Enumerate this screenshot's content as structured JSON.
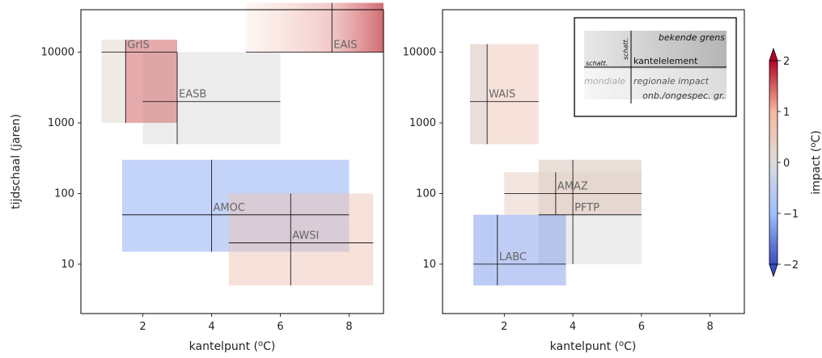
{
  "chart_data": [
    {
      "type": "range-box",
      "xlabel_main": "kantelpunt (",
      "xlabel_sup": "o",
      "xlabel_tail": "C)",
      "ylabel": "tijdschaal (jaren)",
      "xlim": [
        0.2,
        9.0
      ],
      "ylim_log": [
        2,
        40000
      ],
      "xticks": [
        2,
        4,
        6,
        8
      ],
      "yticks": [
        10,
        100,
        1000,
        10000
      ],
      "yscale": "log",
      "elements": [
        {
          "name": "GrIS",
          "x": [
            0.8,
            3.0
          ],
          "y": [
            1000,
            15000
          ],
          "x_best": 1.5,
          "y_best": 10000,
          "impact": 0.2
        },
        {
          "name": "EAIS",
          "x": [
            5.0,
            9.0
          ],
          "y": [
            10000,
            50000
          ],
          "x_best": 7.5,
          "y_best": 10000,
          "impact": 1.5
        },
        {
          "name": "EASB",
          "x": [
            2.0,
            6.0
          ],
          "y": [
            500,
            10000
          ],
          "x_best": 3.0,
          "y_best": 2000,
          "impact": null
        },
        {
          "name": "AMOC",
          "x": [
            1.4,
            8.0
          ],
          "y": [
            15,
            300
          ],
          "x_best": 4.0,
          "y_best": 50,
          "impact": -1.2
        },
        {
          "name": "AWSI",
          "x": [
            4.5,
            8.7
          ],
          "y": [
            5,
            100
          ],
          "x_best": 6.3,
          "y_best": 20,
          "impact": 0.6
        }
      ],
      "secondary_boxes": [
        {
          "name": "GrIS",
          "x": [
            1.5,
            3.0
          ],
          "y": [
            1000,
            15000
          ],
          "impact": 1.5
        }
      ]
    },
    {
      "type": "range-box",
      "xlabel_main": "kantelpunt (",
      "xlabel_sup": "o",
      "xlabel_tail": "C)",
      "xlim": [
        0.2,
        9.0
      ],
      "ylim_log": [
        2,
        40000
      ],
      "xticks": [
        2,
        4,
        6,
        8
      ],
      "yticks": [
        10,
        100,
        1000,
        10000
      ],
      "yscale": "log",
      "elements": [
        {
          "name": "WAIS",
          "x": [
            1.0,
            3.0
          ],
          "y": [
            500,
            13000
          ],
          "x_best": 1.5,
          "y_best": 2000,
          "impact": 0.6
        },
        {
          "name": "AMAZ",
          "x": [
            2.0,
            6.0
          ],
          "y": [
            50,
            200
          ],
          "x_best": 3.5,
          "y_best": 100,
          "impact": 0.4
        },
        {
          "name": "PFTP",
          "x": [
            3.0,
            6.0
          ],
          "y": [
            10,
            300
          ],
          "x_best": 4.0,
          "y_best": 50,
          "impact": null
        },
        {
          "name": "LABC",
          "x": [
            1.1,
            3.8
          ],
          "y": [
            5,
            50
          ],
          "x_best": 1.8,
          "y_best": 10,
          "impact": -1.3
        }
      ],
      "secondary_boxes": [
        {
          "name": "WAIS",
          "x": [
            1.0,
            1.5
          ],
          "y": [
            500,
            13000
          ],
          "impact": null
        },
        {
          "name": "AMAZ",
          "x": [
            3.0,
            6.0
          ],
          "y": [
            50,
            300
          ],
          "impact": 0.4
        },
        {
          "name": "LABC",
          "x": [
            1.1,
            1.8
          ],
          "y": [
            5,
            50
          ],
          "impact": -0.6
        }
      ],
      "legend": {
        "row1_right": "bekende grens",
        "vertical_label": "schatt.",
        "row2_left": "schatt.",
        "row2_right": "kantelelement",
        "row3_left": "mondiale",
        "row3_right": "regionale impact",
        "row4_right": "onb./ongespec. gr."
      }
    }
  ],
  "colorbar": {
    "label_main": "impact (",
    "label_sup": "o",
    "label_tail": "C)",
    "range": [
      -2,
      2
    ],
    "ticks": [
      "2",
      "1",
      "0",
      "−1",
      "−2"
    ],
    "colors": [
      "#b40426",
      "#f7b89c",
      "#dddcdc",
      "#9ebeff",
      "#3b4cc0"
    ],
    "extend": "both"
  }
}
